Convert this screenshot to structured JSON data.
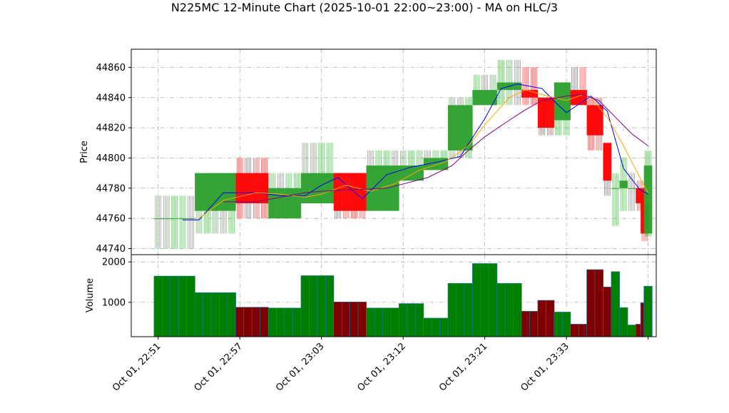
{
  "chart_data": {
    "type": "candlestick",
    "title": "N225MC 12-Minute Chart (2025-10-01 22:00~23:00) - MA on HLC/3",
    "colors": {
      "up": "#2ca02c",
      "down": "#ff0000",
      "ma_fast": "#0000ff",
      "ma_mid": "#ffa500",
      "ma_slow": "#800080",
      "vol_up": "#008000",
      "vol_down": "#800000",
      "vol_edge": "#1f77b4",
      "grid": "#b0b0b0"
    },
    "price_panel": {
      "ylabel": "Price",
      "ylim": [
        44736,
        44872
      ],
      "yticks": [
        44740,
        44760,
        44780,
        44800,
        44820,
        44840,
        44860
      ],
      "grid": true
    },
    "volume_panel": {
      "ylabel": "Volume",
      "ylim": [
        150,
        2180
      ],
      "yticks": [
        1000,
        2000
      ],
      "grid": true
    },
    "x_axis": {
      "xlim": [
        -3.3,
        61
      ],
      "ticks": [
        {
          "pos": 0,
          "label": "Oct 01, 22:51"
        },
        {
          "pos": 10,
          "label": "Oct 01, 22:57"
        },
        {
          "pos": 20,
          "label": "Oct 01, 23:03"
        },
        {
          "pos": 30,
          "label": "Oct 01, 23:12"
        },
        {
          "pos": 40,
          "label": "Oct 01, 23:21"
        },
        {
          "pos": 50,
          "label": "Oct 01, 23:33"
        },
        {
          "pos": 60,
          "label": ""
        }
      ]
    },
    "candle_groups": [
      {
        "start": 0,
        "count": 5,
        "open": 44760,
        "high": 44775,
        "low": 44740,
        "close": 44760,
        "volume": 1650
      },
      {
        "start": 5,
        "count": 5,
        "open": 44765,
        "high": 44790,
        "low": 44750,
        "close": 44790,
        "volume": 1240
      },
      {
        "start": 10,
        "count": 4,
        "open": 44790,
        "high": 44800,
        "low": 44760,
        "close": 44770,
        "volume": 880
      },
      {
        "start": 14,
        "count": 4,
        "open": 44760,
        "high": 44790,
        "low": 44760,
        "close": 44780,
        "volume": 860
      },
      {
        "start": 18,
        "count": 4,
        "open": 44770,
        "high": 44810,
        "low": 44770,
        "close": 44790,
        "volume": 1660
      },
      {
        "start": 22,
        "count": 4,
        "open": 44790,
        "high": 44790,
        "low": 44760,
        "close": 44765,
        "volume": 1010
      },
      {
        "start": 26,
        "count": 4,
        "open": 44765,
        "high": 44805,
        "low": 44765,
        "close": 44795,
        "volume": 860
      },
      {
        "start": 30,
        "count": 3,
        "open": 44785,
        "high": 44805,
        "low": 44785,
        "close": 44795,
        "volume": 970
      },
      {
        "start": 33,
        "count": 3,
        "open": 44792,
        "high": 44805,
        "low": 44792,
        "close": 44800,
        "volume": 610
      },
      {
        "start": 36,
        "count": 3,
        "open": 44805,
        "high": 44840,
        "low": 44800,
        "close": 44835,
        "volume": 1470
      },
      {
        "start": 39,
        "count": 3,
        "open": 44835,
        "high": 44855,
        "low": 44835,
        "close": 44845,
        "volume": 1960
      },
      {
        "start": 42,
        "count": 3,
        "open": 44845,
        "high": 44865,
        "low": 44835,
        "close": 44850,
        "volume": 1470
      },
      {
        "start": 45,
        "count": 2,
        "open": 44845,
        "high": 44860,
        "low": 44835,
        "close": 44840,
        "volume": 780
      },
      {
        "start": 47,
        "count": 2,
        "open": 44840,
        "high": 44840,
        "low": 44815,
        "close": 44820,
        "volume": 1050
      },
      {
        "start": 49,
        "count": 2,
        "open": 44825,
        "high": 44850,
        "low": 44815,
        "close": 44850,
        "volume": 760
      },
      {
        "start": 51,
        "count": 2,
        "open": 44845,
        "high": 44860,
        "low": 44835,
        "close": 44835,
        "volume": 460
      },
      {
        "start": 53,
        "count": 2,
        "open": 44835,
        "high": 44840,
        "low": 44805,
        "close": 44815,
        "volume": 1810
      },
      {
        "start": 55,
        "count": 1,
        "open": 44810,
        "high": 44810,
        "low": 44775,
        "close": 44785,
        "volume": 1380
      },
      {
        "start": 56,
        "count": 1,
        "open": 44780,
        "high": 44790,
        "low": 44755,
        "close": 44780,
        "volume": 1760
      },
      {
        "start": 57,
        "count": 1,
        "open": 44780,
        "high": 44800,
        "low": 44765,
        "close": 44785,
        "volume": 870
      },
      {
        "start": 58,
        "count": 1,
        "open": 44780,
        "high": 44790,
        "low": 44765,
        "close": 44780,
        "volume": 440
      },
      {
        "start": 59,
        "count": 1,
        "open": 44780,
        "high": 44785,
        "low": 44765,
        "close": 44770,
        "volume": 460
      },
      {
        "start": 59.6,
        "count": 1,
        "open": 44770,
        "high": 44775,
        "low": 44745,
        "close": 44750,
        "volume": 990
      },
      {
        "start": 60,
        "count": 1,
        "open": 44750,
        "high": 44805,
        "low": 44748,
        "close": 44795,
        "volume": 1400
      }
    ],
    "series": [
      {
        "role": "ma_fast",
        "x": [
          3,
          5,
          8,
          12,
          15,
          18,
          20,
          22,
          25,
          28,
          31,
          34,
          37,
          40,
          42,
          44,
          47,
          49,
          50,
          53,
          55,
          57,
          59,
          60
        ],
        "y": [
          44759,
          44759,
          44777,
          44777,
          44775,
          44775,
          44782,
          44787,
          44773,
          44789,
          44794,
          44797,
          44801,
          44826,
          44846,
          44849,
          44846,
          44835,
          44830,
          44841,
          44831,
          44793,
          44779,
          44776
        ]
      },
      {
        "role": "ma_mid",
        "x": [
          5,
          8,
          12,
          15,
          18,
          20,
          23,
          26,
          29,
          32,
          35,
          38,
          40,
          43,
          45,
          47,
          50,
          52,
          53,
          55,
          57,
          59,
          60
        ],
        "y": [
          44760,
          44772,
          44777,
          44776,
          44774,
          44776,
          44782,
          44778,
          44783,
          44792,
          44797,
          44808,
          44822,
          44840,
          44845,
          44842,
          44838,
          44842,
          44840,
          44827,
          44808,
          44787,
          44777
        ]
      },
      {
        "role": "ma_slow",
        "x": [
          8,
          12,
          15,
          18,
          20,
          24,
          28,
          33,
          36,
          38,
          40,
          43,
          45,
          47,
          50,
          52,
          54,
          56,
          58,
          60
        ],
        "y": [
          44771,
          44771,
          44774,
          44777,
          44778,
          44779,
          44780,
          44787,
          44795,
          44805,
          44814,
          44825,
          44832,
          44838,
          44841,
          44842,
          44838,
          44827,
          44816,
          44808
        ]
      }
    ]
  }
}
